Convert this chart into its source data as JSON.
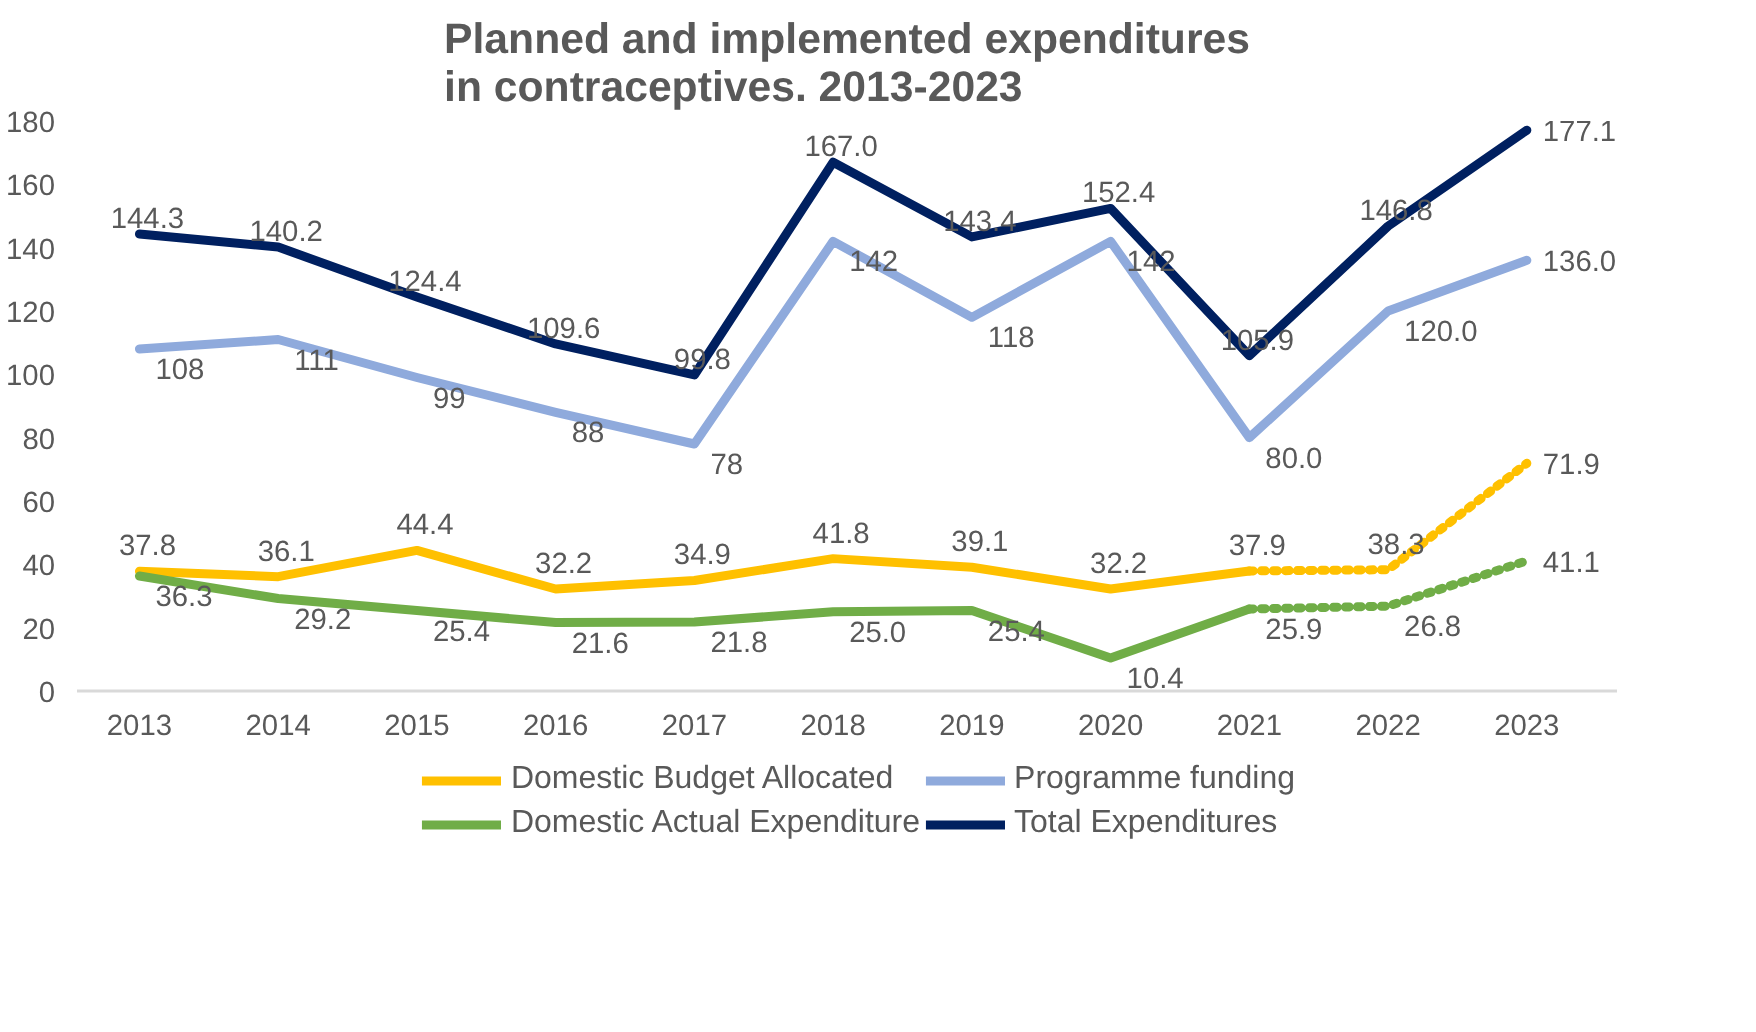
{
  "chart_data": {
    "type": "line",
    "title": "Planned and implemented expenditures in contraceptives. 2013-2023",
    "categories": [
      "2013",
      "2014",
      "2015",
      "2016",
      "2017",
      "2018",
      "2019",
      "2020",
      "2021",
      "2022",
      "2023"
    ],
    "ylim": [
      0,
      180
    ],
    "yticks": [
      0,
      20,
      40,
      60,
      80,
      100,
      120,
      140,
      160,
      180
    ],
    "grid": false,
    "legend": "bottom",
    "line_style": "solid",
    "marker": "none",
    "series": [
      {
        "name": "Domestic Budget Allocated",
        "color": "#ffc000",
        "values": [
          37.8,
          36.1,
          44.4,
          32.2,
          34.9,
          41.8,
          39.1,
          32.2,
          37.9,
          null,
          null
        ],
        "value_labels": [
          "37.8",
          "36.1",
          "44.4",
          "32.2",
          "34.9",
          "41.8",
          "39.1",
          "32.2",
          "37.9",
          null,
          null
        ]
      },
      {
        "name": "Domestic Actual Expenditure",
        "color": "#70ad47",
        "values": [
          36.3,
          29.2,
          25.4,
          21.6,
          21.8,
          25.0,
          25.4,
          10.4,
          25.9,
          null,
          null
        ],
        "value_labels": [
          "36.3",
          "29.2",
          "25.4",
          "21.6",
          "21.8",
          "25.0",
          "25.4",
          "10.4",
          "25.9",
          null,
          null
        ]
      },
      {
        "name": "Programme funding",
        "color": "#8faadc",
        "values": [
          108,
          111,
          99,
          88,
          78,
          142,
          118,
          142,
          80.0,
          120.0,
          136.0
        ],
        "value_labels": [
          "108",
          "111",
          "99",
          "88",
          "78",
          "142",
          "118",
          "142",
          "80.0",
          "120.0",
          "136.0"
        ]
      },
      {
        "name": "Total Expenditures",
        "color": "#002060",
        "values": [
          144.3,
          140.2,
          124.4,
          109.6,
          99.8,
          167.0,
          143.4,
          152.4,
          105.9,
          146.8,
          177.1
        ],
        "value_labels": [
          "144.3",
          "140.2",
          "124.4",
          "109.6",
          "99.8",
          "167.0",
          "143.4",
          "152.4",
          "105.9",
          "146.8",
          "177.1"
        ]
      },
      {
        "color": "#ffc000",
        "line_style": "dotted",
        "values": [
          null,
          null,
          null,
          null,
          null,
          null,
          null,
          null,
          37.9,
          38.3,
          71.9
        ],
        "value_labels": [
          null,
          null,
          null,
          null,
          null,
          null,
          null,
          null,
          null,
          "38.3",
          "71.9"
        ]
      },
      {
        "color": "#70ad47",
        "line_style": "dotted",
        "values": [
          null,
          null,
          null,
          null,
          null,
          null,
          null,
          null,
          25.9,
          26.8,
          41.1
        ],
        "value_labels": [
          null,
          null,
          null,
          null,
          null,
          null,
          null,
          null,
          null,
          "26.8",
          "41.1"
        ]
      }
    ]
  }
}
